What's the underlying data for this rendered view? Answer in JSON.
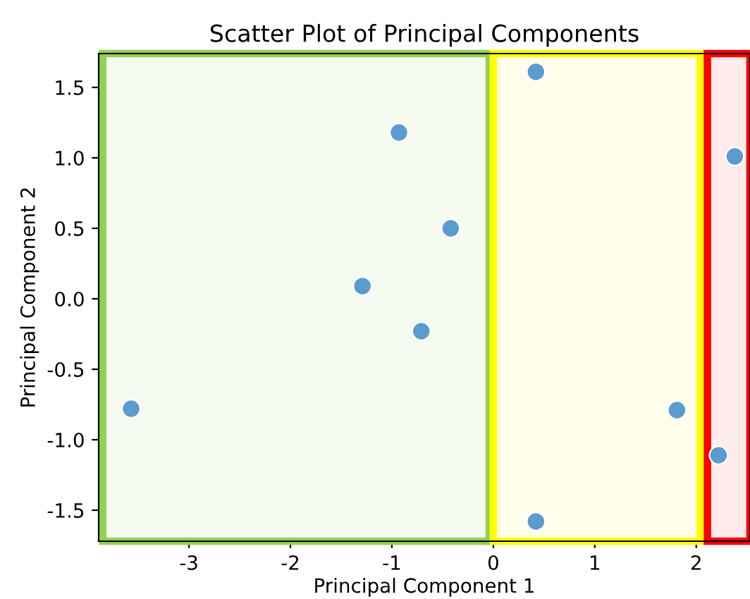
{
  "chart_data": {
    "type": "scatter",
    "title": "Scatter Plot of Principal Components",
    "xlabel": "Principal Component 1",
    "ylabel": "Principal Component 2",
    "x": [
      -3.57,
      -1.29,
      -0.93,
      -0.71,
      -0.42,
      0.42,
      0.42,
      1.81,
      2.22,
      2.38
    ],
    "series": [
      {
        "color": "#5b9bcf",
        "values": [
          -0.78,
          0.09,
          1.18,
          -0.23,
          0.5,
          1.61,
          -1.58,
          -0.79,
          -1.11,
          1.01
        ]
      }
    ],
    "xlim": [
      -3.89,
      2.53
    ],
    "ylim": [
      -1.72,
      1.74
    ],
    "xticks": [
      -3,
      -2,
      -1,
      0,
      1,
      2
    ],
    "yticks": [
      -1.5,
      {
        "value": -1,
        "label": "-1.0"
      },
      -0.5,
      {
        "value": 0,
        "label": "0.0"
      },
      0.5,
      {
        "value": 1,
        "label": "1.0"
      },
      1.5
    ],
    "bands": [
      {
        "axis": "x",
        "from": -3.85,
        "to": -0.04,
        "color": "#92d050"
      },
      {
        "axis": "x",
        "from": 0.0,
        "to": 2.04,
        "color": "#ffff00"
      },
      {
        "axis": "x",
        "from": 2.11,
        "to": 2.53,
        "color": "#ff0000"
      }
    ],
    "marker": "circle",
    "grid": false
  }
}
